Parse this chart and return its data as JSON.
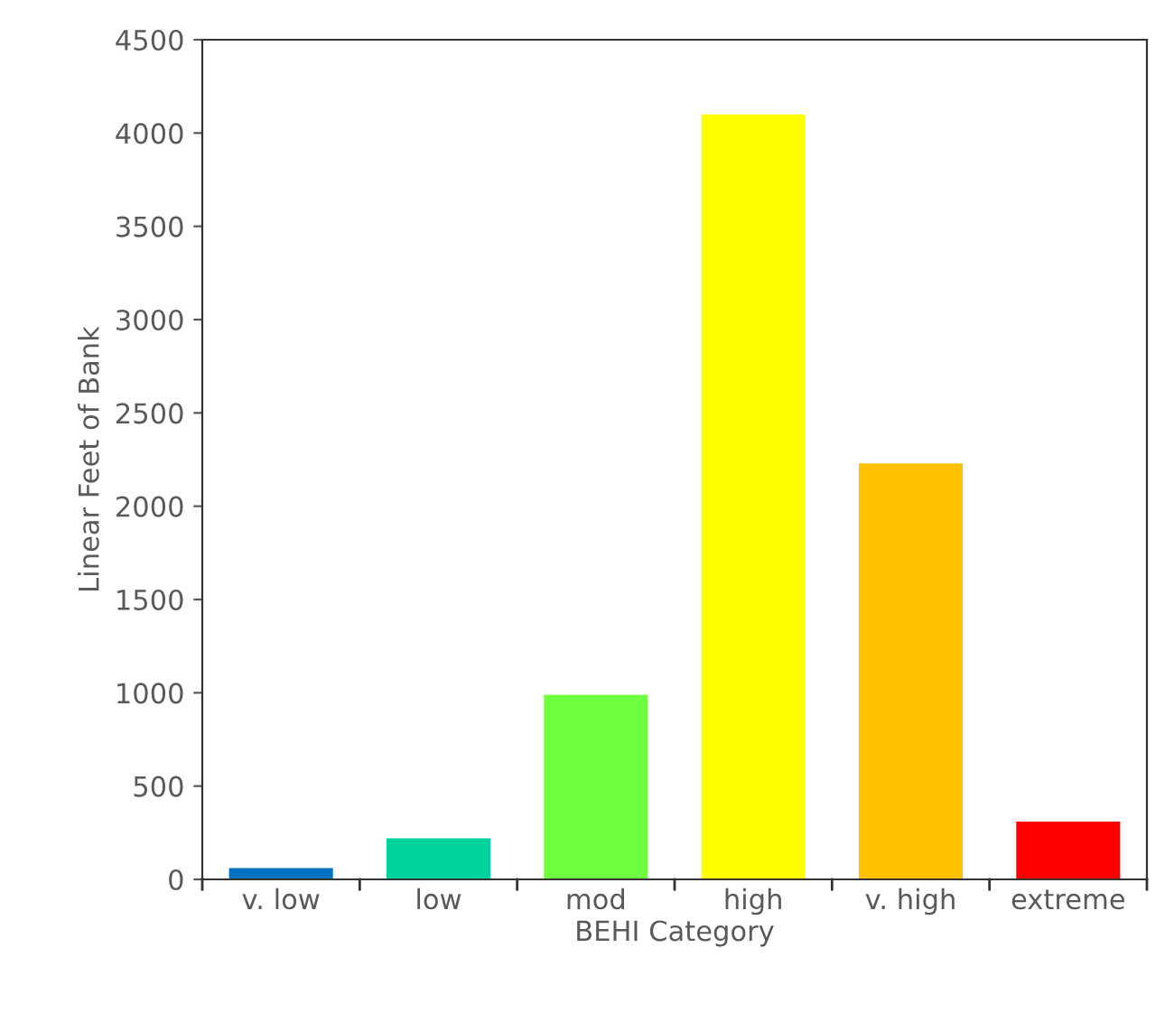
{
  "chart_data": {
    "type": "bar",
    "xlabel": "BEHI Category",
    "ylabel": "Linear Feet of Bank",
    "categories": [
      "v. low",
      "low",
      "mod",
      "high",
      "v. high",
      "extreme"
    ],
    "values": [
      60,
      220,
      990,
      4100,
      2230,
      310
    ],
    "colors": [
      "#0070c0",
      "#00d29c",
      "#70ff40",
      "#ffff00",
      "#ffc000",
      "#ff0000"
    ],
    "ylim": [
      0,
      4500
    ],
    "yticks": [
      0,
      500,
      1000,
      1500,
      2000,
      2500,
      3000,
      3500,
      4000,
      4500
    ],
    "grid": false
  }
}
